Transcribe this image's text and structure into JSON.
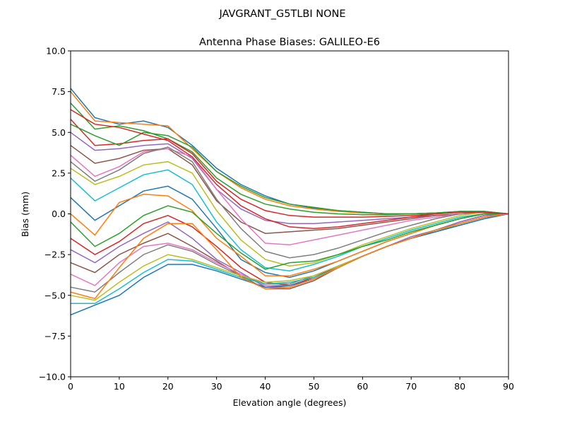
{
  "chart_data": {
    "type": "line",
    "suptitle": "JAVGRANT_G5TLBI NONE",
    "title": "Antenna Phase Biases: GALILEO-E6",
    "xlabel": "Elevation angle (degrees)",
    "ylabel": "Bias (mm)",
    "xlim": [
      0,
      90
    ],
    "ylim": [
      -10,
      10
    ],
    "xticks": [
      0,
      10,
      20,
      30,
      40,
      50,
      60,
      70,
      80,
      90
    ],
    "yticks": [
      -10.0,
      -7.5,
      -5.0,
      -2.5,
      0.0,
      2.5,
      5.0,
      7.5,
      10.0
    ],
    "ytick_labels": [
      "−10.0",
      "−7.5",
      "−5.0",
      "−2.5",
      "0.0",
      "2.5",
      "5.0",
      "7.5",
      "10.0"
    ],
    "grid": false,
    "legend": "none",
    "colors": [
      "#1f77b4",
      "#ff7f0e",
      "#2ca02c",
      "#d62728",
      "#9467bd",
      "#8c564b",
      "#e377c2",
      "#7f7f7f",
      "#bcbd22",
      "#17becf"
    ],
    "x": [
      0,
      5,
      10,
      15,
      20,
      25,
      30,
      35,
      40,
      45,
      50,
      55,
      60,
      65,
      70,
      75,
      80,
      85,
      90
    ],
    "series": [
      {
        "values": [
          7.7,
          5.9,
          5.5,
          5.7,
          5.3,
          4.2,
          2.8,
          1.8,
          1.1,
          0.6,
          0.35,
          0.2,
          0.1,
          0,
          0,
          0.05,
          0.15,
          0.15,
          0
        ]
      },
      {
        "values": [
          7.5,
          5.7,
          5.6,
          5.5,
          5.4,
          4.0,
          2.6,
          1.6,
          0.9,
          0.5,
          0.3,
          0.15,
          0.05,
          0,
          0,
          0.05,
          0.1,
          0.15,
          0
        ]
      },
      {
        "values": [
          6.8,
          5.2,
          5.4,
          5.1,
          4.6,
          3.8,
          2.2,
          1.2,
          0.6,
          0.3,
          0.1,
          0,
          -0.05,
          -0.05,
          0,
          0.05,
          0.1,
          0.1,
          0
        ]
      },
      {
        "values": [
          5.8,
          4.2,
          4.3,
          4.5,
          4.6,
          3.7,
          2.0,
          0.9,
          0.2,
          -0.1,
          -0.2,
          -0.2,
          -0.2,
          -0.15,
          -0.1,
          0,
          0.1,
          0.1,
          0
        ]
      },
      {
        "values": [
          5.0,
          3.9,
          4.0,
          4.2,
          4.3,
          3.4,
          1.5,
          0.3,
          -0.4,
          -0.6,
          -0.6,
          -0.5,
          -0.4,
          -0.3,
          -0.2,
          -0.1,
          0,
          0.1,
          0
        ]
      },
      {
        "values": [
          4.2,
          3.1,
          3.4,
          3.9,
          4.0,
          3.0,
          0.8,
          -0.5,
          -1.2,
          -1.1,
          -1.0,
          -0.9,
          -0.7,
          -0.5,
          -0.3,
          -0.1,
          0,
          0.1,
          0
        ]
      },
      {
        "values": [
          3.6,
          2.3,
          2.9,
          3.8,
          4.0,
          3.5,
          1.5,
          -0.3,
          -1.8,
          -1.9,
          -1.6,
          -1.3,
          -1.0,
          -0.7,
          -0.4,
          -0.2,
          0,
          0.1,
          0
        ]
      },
      {
        "values": [
          3.2,
          2.0,
          2.7,
          3.7,
          4.1,
          3.2,
          0.9,
          -0.9,
          -2.3,
          -2.7,
          -2.5,
          -2.1,
          -1.6,
          -1.1,
          -0.7,
          -0.3,
          0,
          0.1,
          0
        ]
      },
      {
        "values": [
          2.8,
          1.8,
          2.3,
          3.0,
          3.2,
          2.5,
          0.2,
          -1.6,
          -2.8,
          -3.2,
          -3.0,
          -2.5,
          -1.9,
          -1.4,
          -0.9,
          -0.5,
          -0.1,
          0.1,
          0
        ]
      },
      {
        "values": [
          2.2,
          0.8,
          1.6,
          2.4,
          2.7,
          1.8,
          -0.5,
          -2.2,
          -3.3,
          -3.5,
          -3.1,
          -2.6,
          -2.0,
          -1.5,
          -1.0,
          -0.6,
          -0.2,
          0,
          0
        ]
      },
      {
        "values": [
          1.0,
          -0.4,
          0.5,
          1.4,
          1.7,
          0.9,
          -0.9,
          -2.8,
          -3.6,
          -3.9,
          -3.5,
          -2.9,
          -2.3,
          -1.7,
          -1.2,
          -0.7,
          -0.3,
          0,
          0
        ]
      },
      {
        "values": [
          0,
          -1.3,
          0.7,
          1.2,
          1.1,
          0.2,
          -1.5,
          -2.6,
          -3.8,
          -3.8,
          -3.4,
          -2.9,
          -2.3,
          -1.7,
          -1.2,
          -0.7,
          -0.3,
          0,
          0
        ]
      },
      {
        "values": [
          -0.5,
          -2.0,
          -1.2,
          -0.1,
          0.5,
          0.1,
          -1.2,
          -2.4,
          -3.4,
          -3.0,
          -2.9,
          -2.5,
          -2.0,
          -1.6,
          -1.1,
          -0.7,
          -0.3,
          0,
          0
        ]
      },
      {
        "values": [
          -1.5,
          -2.5,
          -1.7,
          -0.6,
          -0.1,
          -0.8,
          -2.0,
          -3.3,
          -4.2,
          -4.4,
          -3.9,
          -3.2,
          -2.6,
          -2.0,
          -1.5,
          -1.0,
          -0.5,
          -0.1,
          0
        ]
      },
      {
        "values": [
          -2.2,
          -3.0,
          -2.0,
          -1.2,
          -0.5,
          -1.5,
          -2.8,
          -3.6,
          -4.5,
          -4.5,
          -4.0,
          -3.3,
          -2.6,
          -2.0,
          -1.4,
          -1.0,
          -0.5,
          -0.1,
          0
        ]
      },
      {
        "values": [
          -3.0,
          -3.6,
          -2.5,
          -1.8,
          -1.2,
          -2.0,
          -2.9,
          -3.8,
          -4.6,
          -4.6,
          -4.1,
          -3.3,
          -2.6,
          -2.0,
          -1.5,
          -1.0,
          -0.6,
          -0.2,
          0
        ]
      },
      {
        "values": [
          -3.7,
          -4.4,
          -3.0,
          -2.0,
          -1.8,
          -2.2,
          -3.0,
          -3.7,
          -4.4,
          -4.4,
          -4.0,
          -3.3,
          -2.6,
          -2.0,
          -1.5,
          -1.0,
          -0.6,
          -0.2,
          0
        ]
      },
      {
        "values": [
          -4.5,
          -4.8,
          -3.6,
          -2.5,
          -1.9,
          -2.3,
          -3.1,
          -3.8,
          -4.3,
          -4.3,
          -3.8,
          -3.2,
          -2.6,
          -2.0,
          -1.5,
          -1.0,
          -0.6,
          -0.2,
          0
        ]
      },
      {
        "values": [
          -5.0,
          -5.3,
          -4.2,
          -3.2,
          -2.5,
          -2.8,
          -3.3,
          -3.8,
          -4.2,
          -4.1,
          -3.8,
          -3.2,
          -2.6,
          -2.0,
          -1.5,
          -1.1,
          -0.6,
          -0.2,
          0
        ]
      },
      {
        "values": [
          -5.5,
          -5.5,
          -4.6,
          -3.6,
          -2.8,
          -2.9,
          -3.4,
          -3.9,
          -4.3,
          -4.2,
          -3.9,
          -3.3,
          -2.6,
          -2.0,
          -1.5,
          -1.1,
          -0.7,
          -0.3,
          0
        ]
      },
      {
        "values": [
          -6.2,
          -5.6,
          -5.0,
          -3.9,
          -3.1,
          -3.1,
          -3.5,
          -4.0,
          -4.5,
          -4.4,
          -4.0,
          -3.3,
          -2.6,
          -2.0,
          -1.5,
          -1.1,
          -0.7,
          -0.3,
          0
        ]
      },
      {
        "values": [
          -4.8,
          -5.2,
          -3.3,
          -1.5,
          -0.6,
          -0.6,
          -2.2,
          -3.9,
          -4.6,
          -4.5,
          -4.0,
          -3.3,
          -2.6,
          -2.0,
          -1.5,
          -1.0,
          -0.6,
          -0.2,
          0
        ]
      },
      {
        "values": [
          5.5,
          4.8,
          4.2,
          5.0,
          4.8,
          4.1,
          2.6,
          1.7,
          1.0,
          0.6,
          0.4,
          0.2,
          0.1,
          0,
          0,
          0.05,
          0.15,
          0.15,
          0
        ]
      },
      {
        "values": [
          6.4,
          5.5,
          5.3,
          4.9,
          4.5,
          3.5,
          1.8,
          0.5,
          -0.3,
          -0.8,
          -0.9,
          -0.8,
          -0.6,
          -0.4,
          -0.2,
          0,
          0.1,
          0.1,
          0
        ]
      }
    ]
  }
}
